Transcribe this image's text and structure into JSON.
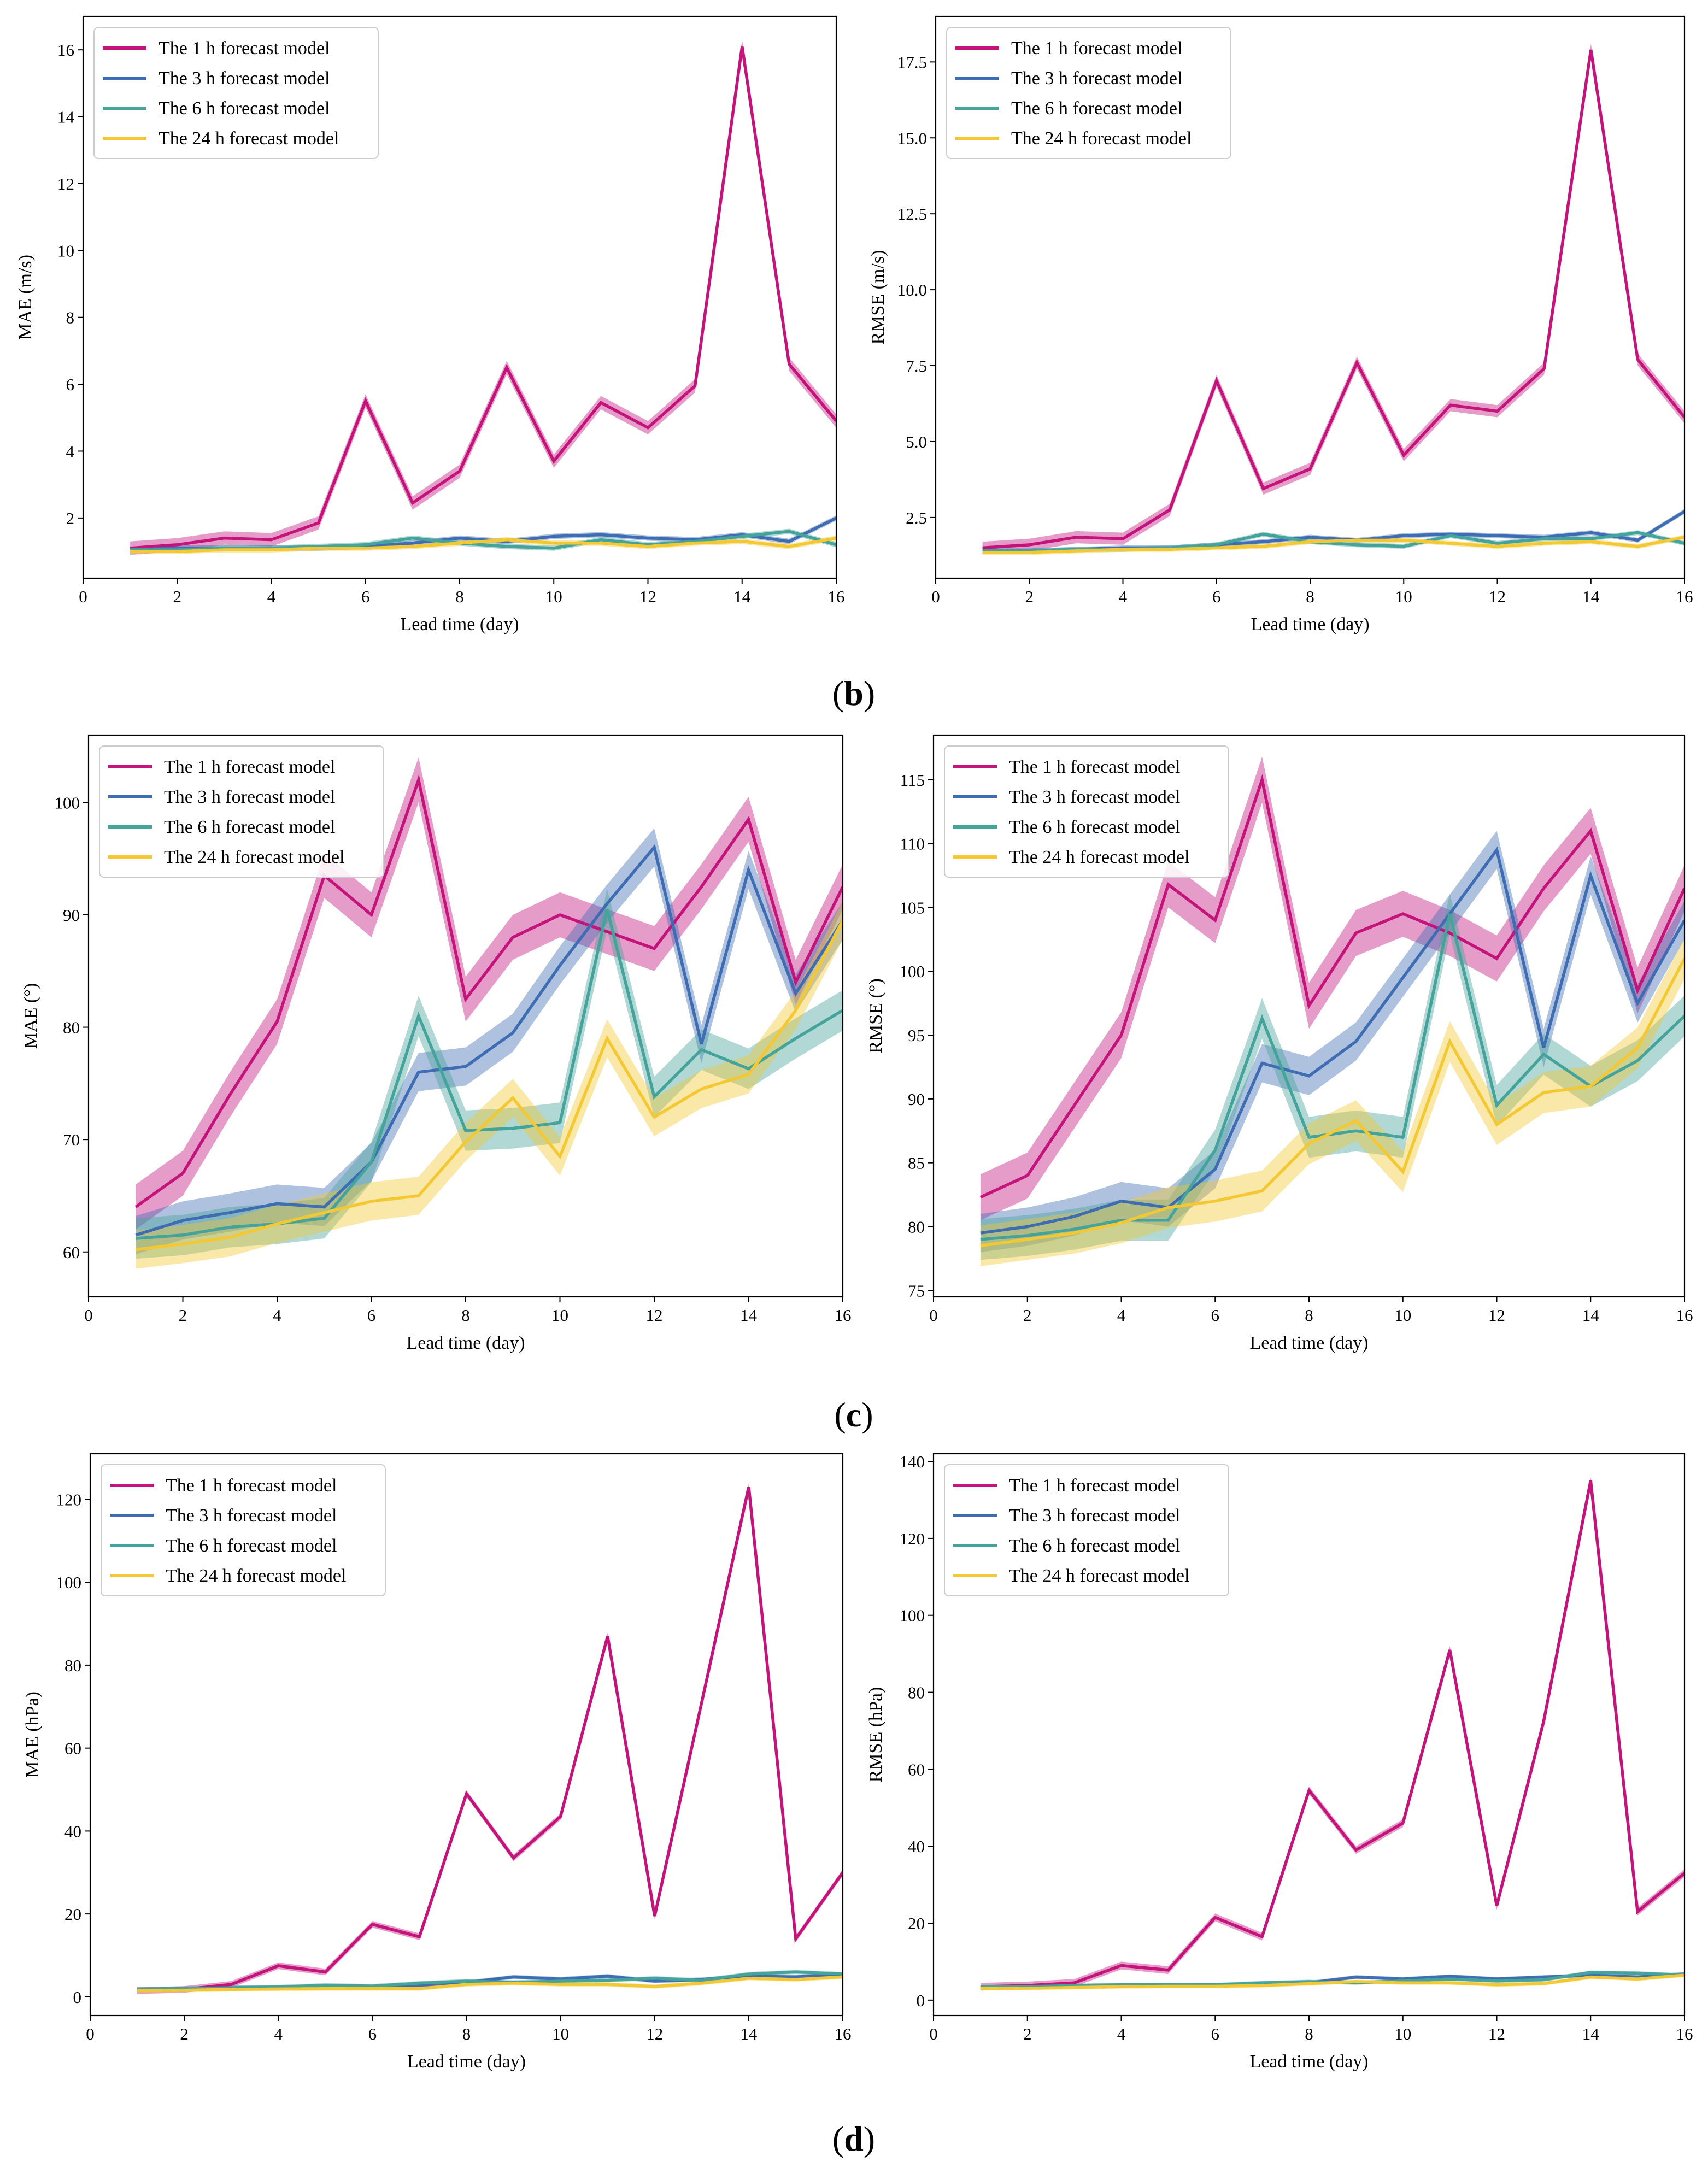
{
  "colors": {
    "The 1 h forecast model": "#c4137b",
    "The 3 h forecast model": "#3e6db3",
    "The 6 h forecast model": "#44a39a",
    "The 24 h forecast model": "#f3c832"
  },
  "panel_labels": [
    "(b)",
    "(c)",
    "(d)"
  ],
  "chart_data": [
    {
      "type": "line",
      "title": "",
      "xlabel": "Lead time (day)",
      "ylabel": "MAE (m/s)",
      "xlim": [
        0,
        16
      ],
      "ylim": [
        0.2,
        17.0
      ],
      "xticks": [
        0,
        2,
        4,
        6,
        8,
        10,
        12,
        14,
        16
      ],
      "yticks": [
        2,
        4,
        6,
        8,
        10,
        12,
        14,
        16
      ],
      "legend_position": "top-left",
      "x": [
        1,
        2,
        3,
        4,
        5,
        6,
        7,
        8,
        9,
        10,
        11,
        12,
        13,
        14,
        15,
        16
      ],
      "series": [
        {
          "name": "The 1 h forecast model",
          "values": [
            1.1,
            1.2,
            1.4,
            1.35,
            1.85,
            5.5,
            2.45,
            3.4,
            6.5,
            3.7,
            5.45,
            4.7,
            5.95,
            16.1,
            6.6,
            4.9
          ],
          "band": 0.2
        },
        {
          "name": "The 3 h forecast model",
          "values": [
            1.05,
            1.1,
            1.1,
            1.1,
            1.1,
            1.15,
            1.25,
            1.4,
            1.3,
            1.45,
            1.5,
            1.4,
            1.35,
            1.5,
            1.3,
            2.0
          ],
          "band": 0.08
        },
        {
          "name": "The 6 h forecast model",
          "values": [
            1.05,
            1.05,
            1.1,
            1.1,
            1.15,
            1.2,
            1.4,
            1.25,
            1.15,
            1.1,
            1.35,
            1.2,
            1.3,
            1.45,
            1.6,
            1.2
          ],
          "band": 0.08
        },
        {
          "name": "The 24 h forecast model",
          "values": [
            1.0,
            1.0,
            1.05,
            1.05,
            1.1,
            1.1,
            1.15,
            1.25,
            1.35,
            1.25,
            1.25,
            1.15,
            1.25,
            1.3,
            1.15,
            1.4
          ],
          "band": 0.08
        }
      ]
    },
    {
      "type": "line",
      "title": "",
      "xlabel": "Lead time (day)",
      "ylabel": "RMSE (m/s)",
      "xlim": [
        0,
        16
      ],
      "ylim": [
        0.5,
        19.0
      ],
      "xticks": [
        0,
        2,
        4,
        6,
        8,
        10,
        12,
        14,
        16
      ],
      "yticks": [
        2.5,
        5.0,
        7.5,
        10.0,
        12.5,
        15.0,
        17.5
      ],
      "ytick_labels": [
        "2.5",
        "5.0",
        "7.5",
        "10.0",
        "12.5",
        "15.0",
        "17.5"
      ],
      "legend_position": "top-left",
      "x": [
        1,
        2,
        3,
        4,
        5,
        6,
        7,
        8,
        9,
        10,
        11,
        12,
        13,
        14,
        15,
        16
      ],
      "series": [
        {
          "name": "The 1 h forecast model",
          "values": [
            1.5,
            1.6,
            1.85,
            1.8,
            2.75,
            7.0,
            3.45,
            4.1,
            7.6,
            4.55,
            6.2,
            6.0,
            7.4,
            17.9,
            7.7,
            5.8
          ],
          "band": 0.2
        },
        {
          "name": "The 3 h forecast model",
          "values": [
            1.4,
            1.4,
            1.45,
            1.5,
            1.5,
            1.6,
            1.7,
            1.85,
            1.75,
            1.9,
            1.95,
            1.9,
            1.85,
            2.0,
            1.75,
            2.7
          ],
          "band": 0.08
        },
        {
          "name": "The 6 h forecast model",
          "values": [
            1.4,
            1.4,
            1.45,
            1.45,
            1.5,
            1.6,
            1.95,
            1.7,
            1.6,
            1.55,
            1.9,
            1.65,
            1.8,
            1.8,
            2.0,
            1.65
          ],
          "band": 0.08
        },
        {
          "name": "The 24 h forecast model",
          "values": [
            1.35,
            1.35,
            1.4,
            1.45,
            1.45,
            1.5,
            1.55,
            1.7,
            1.75,
            1.75,
            1.65,
            1.55,
            1.65,
            1.7,
            1.55,
            1.85
          ],
          "band": 0.08
        }
      ]
    },
    {
      "type": "line",
      "title": "",
      "xlabel": "Lead time (day)",
      "ylabel": "MAE (°)",
      "xlim": [
        0,
        16
      ],
      "ylim": [
        56,
        106
      ],
      "xticks": [
        0,
        2,
        4,
        6,
        8,
        10,
        12,
        14,
        16
      ],
      "yticks": [
        60,
        70,
        80,
        90,
        100
      ],
      "legend_position": "top-left",
      "x": [
        1,
        2,
        3,
        4,
        5,
        6,
        7,
        8,
        9,
        10,
        11,
        12,
        13,
        14,
        15,
        16
      ],
      "series": [
        {
          "name": "The 1 h forecast model",
          "values": [
            64,
            67,
            74,
            80.5,
            93.5,
            90,
            102,
            82.5,
            88,
            90,
            88.5,
            87,
            92.5,
            98.5,
            84,
            92.5
          ],
          "band": 2.0
        },
        {
          "name": "The 3 h forecast model",
          "values": [
            61.5,
            62.8,
            63.5,
            64.3,
            64,
            68,
            76,
            76.5,
            79.5,
            85.5,
            91,
            96,
            78.5,
            94,
            83,
            89.5
          ],
          "band": 1.7
        },
        {
          "name": "The 6 h forecast model",
          "values": [
            61.2,
            61.5,
            62.2,
            62.5,
            63,
            68,
            81,
            70.8,
            71,
            71.5,
            90.5,
            73.8,
            78,
            76.3,
            79,
            81.5
          ],
          "band": 1.8
        },
        {
          "name": "The 24 h forecast model",
          "values": [
            60.2,
            60.7,
            61.3,
            62.5,
            63.5,
            64.5,
            65,
            69.8,
            73.7,
            68.5,
            79,
            72,
            74.5,
            75.8,
            81.5,
            89.5
          ],
          "band": 1.7
        }
      ]
    },
    {
      "type": "line",
      "title": "",
      "xlabel": "Lead time (day)",
      "ylabel": "RMSE (°)",
      "xlim": [
        0,
        16
      ],
      "ylim": [
        74.5,
        118.5
      ],
      "xticks": [
        0,
        2,
        4,
        6,
        8,
        10,
        12,
        14,
        16
      ],
      "yticks": [
        75,
        80,
        85,
        90,
        95,
        100,
        105,
        110,
        115
      ],
      "legend_position": "top-left",
      "x": [
        1,
        2,
        3,
        4,
        5,
        6,
        7,
        8,
        9,
        10,
        11,
        12,
        13,
        14,
        15,
        16
      ],
      "series": [
        {
          "name": "The 1 h forecast model",
          "values": [
            82.3,
            84,
            89.5,
            95,
            106.8,
            104,
            115,
            97.3,
            103,
            104.5,
            103,
            101,
            106.5,
            111,
            98.5,
            106.5
          ],
          "band": 1.8
        },
        {
          "name": "The 3 h forecast model",
          "values": [
            79.5,
            80,
            80.8,
            82,
            81.5,
            84.5,
            92.8,
            91.8,
            94.5,
            99.5,
            104.5,
            109.5,
            94,
            107.5,
            97.5,
            104
          ],
          "band": 1.5
        },
        {
          "name": "The 6 h forecast model",
          "values": [
            79,
            79.3,
            79.8,
            80.5,
            80.5,
            86,
            96.3,
            87,
            87.5,
            87,
            104.5,
            89.5,
            93.5,
            91,
            93,
            96.5
          ],
          "band": 1.6
        },
        {
          "name": "The 24 h forecast model",
          "values": [
            78.5,
            79,
            79.5,
            80.3,
            81.5,
            82,
            82.8,
            86.5,
            88.3,
            84.3,
            94.5,
            88,
            90.5,
            91,
            94,
            101
          ],
          "band": 1.6
        }
      ]
    },
    {
      "type": "line",
      "title": "",
      "xlabel": "Lead time (day)",
      "ylabel": "MAE (hPa)",
      "xlim": [
        0,
        16
      ],
      "ylim": [
        -4.5,
        131
      ],
      "xticks": [
        0,
        2,
        4,
        6,
        8,
        10,
        12,
        14,
        16
      ],
      "yticks": [
        0,
        20,
        40,
        60,
        80,
        100,
        120
      ],
      "legend_position": "top-left",
      "x": [
        1,
        2,
        3,
        4,
        5,
        6,
        7,
        8,
        9,
        10,
        11,
        12,
        13,
        14,
        15,
        16
      ],
      "series": [
        {
          "name": "The 1 h forecast model",
          "values": [
            1.5,
            1.8,
            3.0,
            7.5,
            6.0,
            17.5,
            14.5,
            49,
            33.5,
            43.5,
            87,
            19.5,
            71,
            123,
            14,
            30
          ],
          "band": 0.8
        },
        {
          "name": "The 3 h forecast model",
          "values": [
            1.8,
            2.0,
            2.2,
            2.3,
            2.5,
            2.3,
            2.8,
            3.5,
            4.8,
            4.3,
            5.0,
            3.8,
            4.2,
            5.0,
            4.8,
            5.5
          ],
          "band": 0.5
        },
        {
          "name": "The 6 h forecast model",
          "values": [
            1.8,
            2.0,
            2.2,
            2.4,
            2.8,
            2.6,
            3.3,
            3.8,
            3.5,
            3.8,
            4.0,
            4.5,
            4.0,
            5.5,
            6.0,
            5.5
          ],
          "band": 0.5
        },
        {
          "name": "The 24 h forecast model",
          "values": [
            1.5,
            1.6,
            1.8,
            1.9,
            2.0,
            2.0,
            2.0,
            3.0,
            3.3,
            3.0,
            3.0,
            2.5,
            3.3,
            4.5,
            4.2,
            4.8
          ],
          "band": 0.5
        }
      ]
    },
    {
      "type": "line",
      "title": "",
      "xlabel": "Lead time (day)",
      "ylabel": "RMSE (hPa)",
      "xlim": [
        0,
        16
      ],
      "ylim": [
        -4,
        142
      ],
      "xticks": [
        0,
        2,
        4,
        6,
        8,
        10,
        12,
        14,
        16
      ],
      "yticks": [
        0,
        20,
        40,
        60,
        80,
        100,
        120,
        140
      ],
      "legend_position": "top-left",
      "x": [
        1,
        2,
        3,
        4,
        5,
        6,
        7,
        8,
        9,
        10,
        11,
        12,
        13,
        14,
        15,
        16
      ],
      "series": [
        {
          "name": "The 1 h forecast model",
          "values": [
            3.5,
            3.8,
            4.5,
            9.0,
            7.8,
            21.5,
            16.5,
            54.5,
            39,
            46,
            91,
            24.5,
            72.5,
            135,
            23,
            33
          ],
          "band": 1.0
        },
        {
          "name": "The 3 h forecast model",
          "values": [
            3.2,
            3.3,
            3.5,
            3.8,
            4.0,
            3.8,
            4.2,
            4.5,
            6.0,
            5.5,
            6.2,
            5.5,
            6.0,
            6.5,
            6.0,
            6.8
          ],
          "band": 0.5
        },
        {
          "name": "The 6 h forecast model",
          "values": [
            3.5,
            3.5,
            3.8,
            4.0,
            4.0,
            4.0,
            4.5,
            4.8,
            4.5,
            5.0,
            5.5,
            5.0,
            5.3,
            7.2,
            7.0,
            6.5
          ],
          "band": 0.5
        },
        {
          "name": "The 24 h forecast model",
          "values": [
            3.0,
            3.1,
            3.3,
            3.5,
            3.6,
            3.6,
            3.8,
            4.3,
            4.8,
            4.5,
            4.5,
            4.0,
            4.3,
            6.0,
            5.5,
            6.5
          ],
          "band": 0.5
        }
      ]
    }
  ]
}
